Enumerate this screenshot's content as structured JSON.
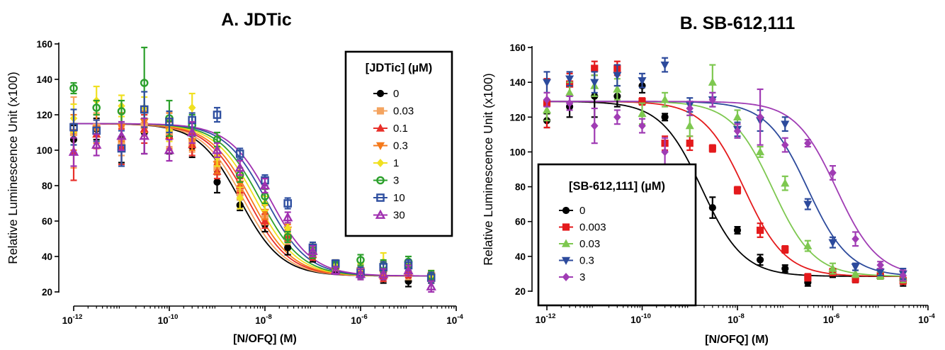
{
  "chart_data": [
    {
      "type": "line",
      "title": "A. JDTic",
      "xlabel": "[N/OFQ] (M)",
      "ylabel": "Relative Luminescence Unit (x100)",
      "x_scale": "log",
      "xlim": [
        1e-12,
        0.0001
      ],
      "ylim": [
        20,
        160
      ],
      "yticks": [
        20,
        40,
        60,
        80,
        100,
        120,
        140,
        160
      ],
      "xticks": [
        {
          "base": "10",
          "exp": "-12"
        },
        {
          "base": "10",
          "exp": "-10"
        },
        {
          "base": "10",
          "exp": "-8"
        },
        {
          "base": "10",
          "exp": "-6"
        },
        {
          "base": "10",
          "exp": "-4"
        }
      ],
      "legend_title": "[JDTic] (µM)",
      "legend_position": "top-right",
      "x": [
        1e-12,
        3e-12,
        1e-11,
        3e-11,
        1e-10,
        3e-10,
        1e-09,
        3e-09,
        1e-08,
        3e-08,
        1e-07,
        3e-07,
        1e-06,
        3e-06,
        1e-05,
        3e-05
      ],
      "series": [
        {
          "name": "0",
          "color": "#000000",
          "marker": "circle",
          "fit": {
            "top": 115,
            "bottom": 29,
            "ec50": 3e-09
          },
          "values": [
            106,
            112,
            107,
            110,
            108,
            102,
            82,
            69,
            58,
            45,
            40,
            33,
            30,
            28,
            26,
            28
          ],
          "errors": [
            8,
            6,
            14,
            12,
            10,
            6,
            6,
            3,
            4,
            4,
            3,
            2,
            3,
            3,
            3,
            3
          ]
        },
        {
          "name": "0.03",
          "color": "#f4a460",
          "marker": "square",
          "fit": {
            "top": 115,
            "bottom": 29,
            "ec50": 3.6e-09
          },
          "values": [
            110,
            113,
            105,
            114,
            110,
            104,
            90,
            76,
            62,
            50,
            41,
            34,
            31,
            29,
            30,
            28
          ],
          "errors": [
            20,
            8,
            8,
            6,
            8,
            5,
            4,
            4,
            4,
            3,
            3,
            2,
            3,
            3,
            3,
            3
          ]
        },
        {
          "name": "0.1",
          "color": "#e8302a",
          "marker": "triangle-up",
          "fit": {
            "top": 115,
            "bottom": 29,
            "ec50": 4.4e-09
          },
          "values": [
            99,
            109,
            102,
            112,
            108,
            103,
            88,
            80,
            60,
            52,
            41,
            35,
            32,
            29,
            31,
            28
          ],
          "errors": [
            16,
            8,
            10,
            8,
            8,
            6,
            4,
            4,
            4,
            3,
            3,
            2,
            3,
            3,
            3,
            3
          ]
        },
        {
          "name": "0.3",
          "color": "#f57a1c",
          "marker": "triangle-down",
          "fit": {
            "top": 115,
            "bottom": 29,
            "ec50": 5.2e-09
          },
          "values": [
            110,
            112,
            113,
            116,
            111,
            105,
            92,
            81,
            65,
            55,
            43,
            36,
            32,
            30,
            33,
            29
          ],
          "errors": [
            10,
            8,
            8,
            6,
            10,
            5,
            5,
            4,
            4,
            3,
            3,
            2,
            3,
            3,
            3,
            3
          ]
        },
        {
          "name": "1",
          "color": "#f0e020",
          "marker": "diamond",
          "fit": {
            "top": 115,
            "bottom": 29,
            "ec50": 6.5e-09
          },
          "values": [
            118,
            128,
            125,
            124,
            111,
            124,
            96,
            73,
            70,
            56,
            44,
            36,
            33,
            37,
            35,
            29
          ],
          "errors": [
            8,
            8,
            6,
            6,
            6,
            8,
            5,
            6,
            4,
            3,
            3,
            2,
            3,
            5,
            3,
            3
          ]
        },
        {
          "name": "3",
          "color": "#2ca02c",
          "marker": "circle-open",
          "fit": {
            "top": 115,
            "bottom": 29,
            "ec50": 8e-09
          },
          "values": [
            135,
            124,
            122,
            138,
            118,
            114,
            106,
            86,
            74,
            51,
            42,
            35,
            38,
            35,
            37,
            29
          ],
          "errors": [
            3,
            4,
            6,
            20,
            10,
            6,
            4,
            4,
            4,
            3,
            3,
            2,
            3,
            3,
            3,
            3
          ]
        },
        {
          "name": "10",
          "color": "#2f4fa0",
          "marker": "square-open",
          "fit": {
            "top": 115,
            "bottom": 29,
            "ec50": 1.05e-08
          },
          "values": [
            113,
            111,
            101,
            123,
            116,
            117,
            120,
            98,
            83,
            70,
            45,
            36,
            31,
            34,
            35,
            28
          ],
          "errors": [
            10,
            6,
            10,
            10,
            6,
            4,
            4,
            3,
            3,
            3,
            3,
            2,
            3,
            3,
            3,
            3
          ]
        },
        {
          "name": "30",
          "color": "#a030b0",
          "marker": "triangle-open",
          "fit": {
            "top": 115,
            "bottom": 29,
            "ec50": 1.3e-08
          },
          "values": [
            99,
            103,
            108,
            108,
            100,
            110,
            100,
            90,
            80,
            62,
            43,
            32,
            30,
            30,
            32,
            23
          ],
          "errors": [
            8,
            6,
            8,
            10,
            6,
            6,
            4,
            4,
            4,
            3,
            3,
            2,
            3,
            3,
            3,
            3
          ]
        }
      ]
    },
    {
      "type": "line",
      "title": "B. SB-612,111",
      "xlabel": "[N/OFQ] (M)",
      "ylabel": "Relative Luminescence Unit (x100)",
      "x_scale": "log",
      "xlim": [
        1e-12,
        0.0001
      ],
      "ylim": [
        20,
        160
      ],
      "yticks": [
        20,
        40,
        60,
        80,
        100,
        120,
        140,
        160
      ],
      "xticks": [
        {
          "base": "10",
          "exp": "-12"
        },
        {
          "base": "10",
          "exp": "-10"
        },
        {
          "base": "10",
          "exp": "-8"
        },
        {
          "base": "10",
          "exp": "-6"
        },
        {
          "base": "10",
          "exp": "-4"
        }
      ],
      "legend_title": "[SB-612,111] (µM)",
      "legend_position": "bottom-left",
      "x": [
        1e-12,
        3e-12,
        1e-11,
        3e-11,
        1e-10,
        3e-10,
        1e-09,
        3e-09,
        1e-08,
        3e-08,
        1e-07,
        3e-07,
        1e-06,
        3e-06,
        1e-05,
        3e-05
      ],
      "series": [
        {
          "name": "0",
          "color": "#000000",
          "marker": "circle",
          "fit": {
            "top": 129,
            "bottom": 28.5,
            "ec50": 1.8e-09
          },
          "values": [
            118,
            126,
            132,
            132,
            138,
            120,
            76,
            68,
            55,
            38,
            33,
            25,
            30,
            27,
            29,
            27
          ],
          "errors": [
            4,
            6,
            12,
            6,
            4,
            2,
            2,
            6,
            2,
            3,
            2,
            2,
            2,
            2,
            2,
            4
          ]
        },
        {
          "name": "0.003",
          "color": "#e41a1c",
          "marker": "square",
          "fit": {
            "top": 129,
            "bottom": 28.5,
            "ec50": 1.4e-08
          },
          "values": [
            128,
            139,
            148,
            148,
            129,
            105,
            105,
            102,
            78,
            55,
            44,
            28,
            31,
            27,
            29,
            26
          ],
          "errors": [
            14,
            6,
            4,
            4,
            2,
            4,
            4,
            2,
            2,
            4,
            2,
            2,
            2,
            2,
            2,
            2
          ]
        },
        {
          "name": "0.03",
          "color": "#7ec850",
          "marker": "triangle-up",
          "fit": {
            "top": 129,
            "bottom": 28.5,
            "ec50": 5.5e-08
          },
          "values": [
            124,
            134,
            138,
            136,
            122,
            130,
            115,
            140,
            120,
            100,
            82,
            46,
            33,
            30,
            29,
            28
          ],
          "errors": [
            6,
            6,
            6,
            6,
            6,
            4,
            6,
            10,
            4,
            3,
            4,
            3,
            3,
            2,
            2,
            3
          ]
        },
        {
          "name": "0.3",
          "color": "#2c4a9c",
          "marker": "triangle-down",
          "fit": {
            "top": 129,
            "bottom": 28.5,
            "ec50": 3e-07
          },
          "values": [
            140,
            142,
            140,
            144,
            141,
            150,
            127,
            130,
            113,
            118,
            116,
            70,
            48,
            34,
            31,
            30
          ],
          "errors": [
            6,
            4,
            6,
            6,
            4,
            4,
            4,
            4,
            4,
            6,
            4,
            3,
            3,
            2,
            2,
            3
          ]
        },
        {
          "name": "3",
          "color": "#a03cb4",
          "marker": "diamond",
          "fit": {
            "top": 129,
            "bottom": 28.5,
            "ec50": 1.2e-06
          },
          "values": [
            130,
            128,
            115,
            120,
            115,
            100,
            125,
            130,
            112,
            120,
            104,
            105,
            88,
            50,
            35,
            29
          ],
          "errors": [
            4,
            4,
            10,
            4,
            4,
            8,
            4,
            4,
            4,
            16,
            4,
            2,
            4,
            4,
            2,
            3
          ]
        }
      ]
    }
  ]
}
